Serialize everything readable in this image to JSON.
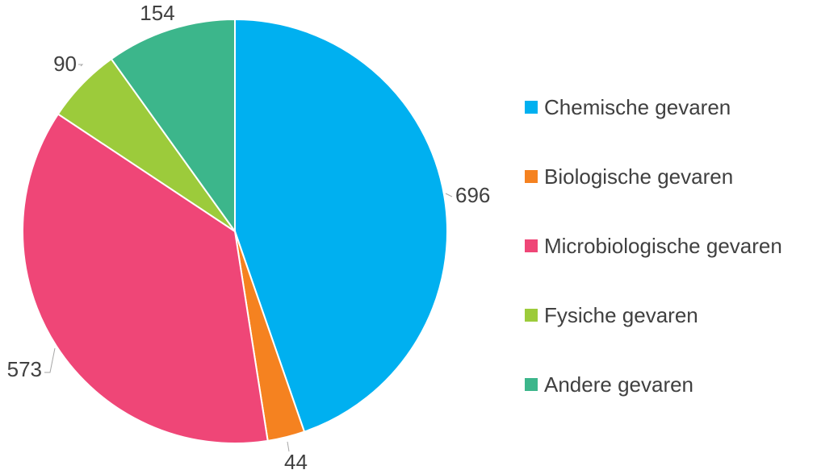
{
  "chart_data": {
    "type": "pie",
    "title": "",
    "categories": [
      "Chemische gevaren",
      "Biologische gevaren",
      "Microbiologische gevaren",
      "Fysiche gevaren",
      "Andere gevaren"
    ],
    "values": [
      696,
      44,
      573,
      90,
      154
    ],
    "colors": [
      "#00b0f0",
      "#f58220",
      "#ef4677",
      "#9ccb3b",
      "#3cb68b"
    ],
    "data_labels": [
      "696",
      "44",
      "573",
      "90",
      "154"
    ],
    "legend_placement": "right",
    "start_angle": "12 o'clock",
    "direction": "clockwise"
  }
}
